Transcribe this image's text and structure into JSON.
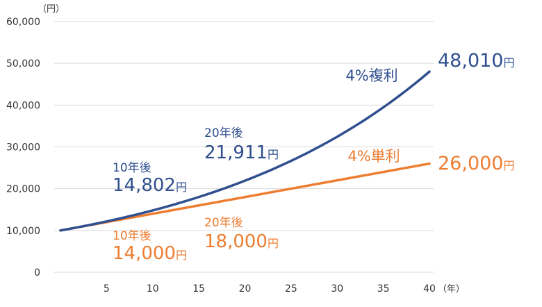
{
  "chart_data": {
    "type": "line",
    "y_unit": "（円）",
    "x_unit": "（年）",
    "xlim": [
      0,
      40
    ],
    "ylim": [
      0,
      60000
    ],
    "x_ticks": [
      5,
      10,
      15,
      20,
      25,
      30,
      35,
      40
    ],
    "y_ticks": [
      0,
      10000,
      20000,
      30000,
      40000,
      50000,
      60000
    ],
    "y_tick_labels": [
      "0",
      "10,000",
      "20,000",
      "30,000",
      "40,000",
      "50,000",
      "60,000"
    ],
    "grid": "horizontal",
    "colors": {
      "compound": "#2f4f8f",
      "simple": "#ed7d31",
      "grid": "#d9d9d9",
      "tick": "#333333"
    },
    "series": [
      {
        "name": "4%複利",
        "color": "#2f4f8f",
        "x": [
          0,
          5,
          10,
          15,
          20,
          25,
          30,
          35,
          40
        ],
        "values": [
          10000,
          12167,
          14802,
          18009,
          21911,
          26658,
          32434,
          39461,
          48010
        ]
      },
      {
        "name": "4%単利",
        "color": "#ed7d31",
        "x": [
          0,
          40
        ],
        "values": [
          10000,
          26000
        ]
      }
    ],
    "annotations": [
      {
        "id": "c10",
        "series": 0,
        "x": 10,
        "line1": "10年後",
        "value": "14,802",
        "unit": "円"
      },
      {
        "id": "c20",
        "series": 0,
        "x": 20,
        "line1": "20年後",
        "value": "21,911",
        "unit": "円"
      },
      {
        "id": "c40",
        "series": 0,
        "x": 40,
        "value": "48,010",
        "unit": "円"
      },
      {
        "id": "s10",
        "series": 1,
        "x": 10,
        "line1": "10年後",
        "value": "14,000",
        "unit": "円"
      },
      {
        "id": "s20",
        "series": 1,
        "x": 20,
        "line1": "20年後",
        "value": "18,000",
        "unit": "円"
      },
      {
        "id": "s40",
        "series": 1,
        "x": 40,
        "value": "26,000",
        "unit": "円"
      }
    ]
  }
}
